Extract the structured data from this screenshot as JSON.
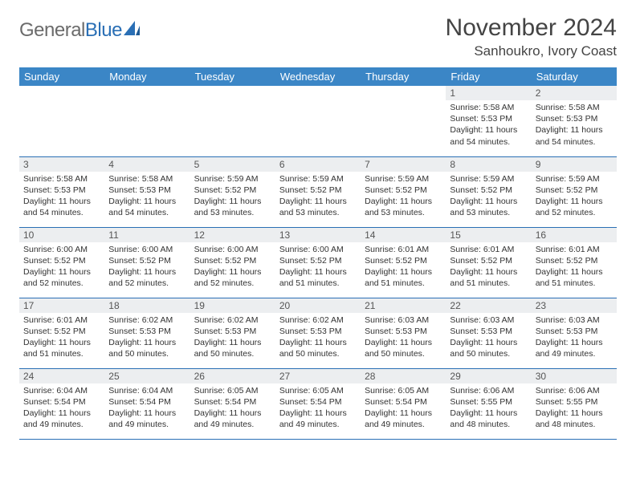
{
  "logo": {
    "part1": "General",
    "part2": "Blue"
  },
  "title": "November 2024",
  "location": "Sanhoukro, Ivory Coast",
  "colors": {
    "header_bg": "#3b86c6",
    "header_text": "#ffffff",
    "daynum_bg": "#eceef0",
    "border": "#2a6fb5",
    "logo_gray": "#6b6b6b",
    "logo_blue": "#2a6fb5",
    "page_bg": "#ffffff"
  },
  "day_headers": [
    "Sunday",
    "Monday",
    "Tuesday",
    "Wednesday",
    "Thursday",
    "Friday",
    "Saturday"
  ],
  "weeks": [
    [
      null,
      null,
      null,
      null,
      null,
      {
        "n": "1",
        "sunrise": "Sunrise: 5:58 AM",
        "sunset": "Sunset: 5:53 PM",
        "daylight": "Daylight: 11 hours and 54 minutes."
      },
      {
        "n": "2",
        "sunrise": "Sunrise: 5:58 AM",
        "sunset": "Sunset: 5:53 PM",
        "daylight": "Daylight: 11 hours and 54 minutes."
      }
    ],
    [
      {
        "n": "3",
        "sunrise": "Sunrise: 5:58 AM",
        "sunset": "Sunset: 5:53 PM",
        "daylight": "Daylight: 11 hours and 54 minutes."
      },
      {
        "n": "4",
        "sunrise": "Sunrise: 5:58 AM",
        "sunset": "Sunset: 5:53 PM",
        "daylight": "Daylight: 11 hours and 54 minutes."
      },
      {
        "n": "5",
        "sunrise": "Sunrise: 5:59 AM",
        "sunset": "Sunset: 5:52 PM",
        "daylight": "Daylight: 11 hours and 53 minutes."
      },
      {
        "n": "6",
        "sunrise": "Sunrise: 5:59 AM",
        "sunset": "Sunset: 5:52 PM",
        "daylight": "Daylight: 11 hours and 53 minutes."
      },
      {
        "n": "7",
        "sunrise": "Sunrise: 5:59 AM",
        "sunset": "Sunset: 5:52 PM",
        "daylight": "Daylight: 11 hours and 53 minutes."
      },
      {
        "n": "8",
        "sunrise": "Sunrise: 5:59 AM",
        "sunset": "Sunset: 5:52 PM",
        "daylight": "Daylight: 11 hours and 53 minutes."
      },
      {
        "n": "9",
        "sunrise": "Sunrise: 5:59 AM",
        "sunset": "Sunset: 5:52 PM",
        "daylight": "Daylight: 11 hours and 52 minutes."
      }
    ],
    [
      {
        "n": "10",
        "sunrise": "Sunrise: 6:00 AM",
        "sunset": "Sunset: 5:52 PM",
        "daylight": "Daylight: 11 hours and 52 minutes."
      },
      {
        "n": "11",
        "sunrise": "Sunrise: 6:00 AM",
        "sunset": "Sunset: 5:52 PM",
        "daylight": "Daylight: 11 hours and 52 minutes."
      },
      {
        "n": "12",
        "sunrise": "Sunrise: 6:00 AM",
        "sunset": "Sunset: 5:52 PM",
        "daylight": "Daylight: 11 hours and 52 minutes."
      },
      {
        "n": "13",
        "sunrise": "Sunrise: 6:00 AM",
        "sunset": "Sunset: 5:52 PM",
        "daylight": "Daylight: 11 hours and 51 minutes."
      },
      {
        "n": "14",
        "sunrise": "Sunrise: 6:01 AM",
        "sunset": "Sunset: 5:52 PM",
        "daylight": "Daylight: 11 hours and 51 minutes."
      },
      {
        "n": "15",
        "sunrise": "Sunrise: 6:01 AM",
        "sunset": "Sunset: 5:52 PM",
        "daylight": "Daylight: 11 hours and 51 minutes."
      },
      {
        "n": "16",
        "sunrise": "Sunrise: 6:01 AM",
        "sunset": "Sunset: 5:52 PM",
        "daylight": "Daylight: 11 hours and 51 minutes."
      }
    ],
    [
      {
        "n": "17",
        "sunrise": "Sunrise: 6:01 AM",
        "sunset": "Sunset: 5:52 PM",
        "daylight": "Daylight: 11 hours and 51 minutes."
      },
      {
        "n": "18",
        "sunrise": "Sunrise: 6:02 AM",
        "sunset": "Sunset: 5:53 PM",
        "daylight": "Daylight: 11 hours and 50 minutes."
      },
      {
        "n": "19",
        "sunrise": "Sunrise: 6:02 AM",
        "sunset": "Sunset: 5:53 PM",
        "daylight": "Daylight: 11 hours and 50 minutes."
      },
      {
        "n": "20",
        "sunrise": "Sunrise: 6:02 AM",
        "sunset": "Sunset: 5:53 PM",
        "daylight": "Daylight: 11 hours and 50 minutes."
      },
      {
        "n": "21",
        "sunrise": "Sunrise: 6:03 AM",
        "sunset": "Sunset: 5:53 PM",
        "daylight": "Daylight: 11 hours and 50 minutes."
      },
      {
        "n": "22",
        "sunrise": "Sunrise: 6:03 AM",
        "sunset": "Sunset: 5:53 PM",
        "daylight": "Daylight: 11 hours and 50 minutes."
      },
      {
        "n": "23",
        "sunrise": "Sunrise: 6:03 AM",
        "sunset": "Sunset: 5:53 PM",
        "daylight": "Daylight: 11 hours and 49 minutes."
      }
    ],
    [
      {
        "n": "24",
        "sunrise": "Sunrise: 6:04 AM",
        "sunset": "Sunset: 5:54 PM",
        "daylight": "Daylight: 11 hours and 49 minutes."
      },
      {
        "n": "25",
        "sunrise": "Sunrise: 6:04 AM",
        "sunset": "Sunset: 5:54 PM",
        "daylight": "Daylight: 11 hours and 49 minutes."
      },
      {
        "n": "26",
        "sunrise": "Sunrise: 6:05 AM",
        "sunset": "Sunset: 5:54 PM",
        "daylight": "Daylight: 11 hours and 49 minutes."
      },
      {
        "n": "27",
        "sunrise": "Sunrise: 6:05 AM",
        "sunset": "Sunset: 5:54 PM",
        "daylight": "Daylight: 11 hours and 49 minutes."
      },
      {
        "n": "28",
        "sunrise": "Sunrise: 6:05 AM",
        "sunset": "Sunset: 5:54 PM",
        "daylight": "Daylight: 11 hours and 49 minutes."
      },
      {
        "n": "29",
        "sunrise": "Sunrise: 6:06 AM",
        "sunset": "Sunset: 5:55 PM",
        "daylight": "Daylight: 11 hours and 48 minutes."
      },
      {
        "n": "30",
        "sunrise": "Sunrise: 6:06 AM",
        "sunset": "Sunset: 5:55 PM",
        "daylight": "Daylight: 11 hours and 48 minutes."
      }
    ]
  ]
}
